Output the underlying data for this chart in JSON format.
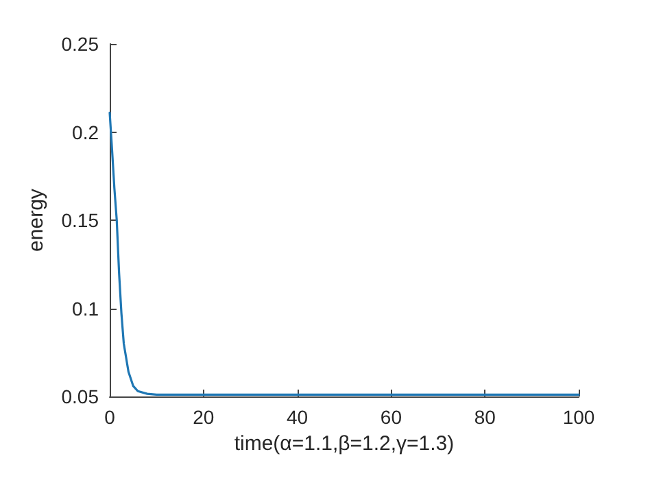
{
  "chart_data": {
    "type": "line",
    "xlabel": "time(α=1.1,β=1.2,γ=1.3)",
    "ylabel": "energy",
    "x": [
      0,
      0.5,
      1,
      1.5,
      2,
      2.5,
      3,
      4,
      5,
      6,
      8,
      10,
      20,
      40,
      60,
      80,
      100
    ],
    "series": [
      {
        "color": "#1f77b4",
        "values": [
          0.211,
          0.19,
          0.168,
          0.15,
          0.12,
          0.097,
          0.08,
          0.064,
          0.056,
          0.053,
          0.0515,
          0.051,
          0.051,
          0.051,
          0.051,
          0.051,
          0.051
        ]
      }
    ],
    "xlim": [
      0,
      100
    ],
    "xticks": [
      0,
      20,
      40,
      60,
      80,
      100
    ],
    "ylim": [
      0.05,
      0.25
    ],
    "yticks": [
      0.05,
      0.1,
      0.15,
      0.2,
      0.25
    ],
    "grid": false,
    "marker": "none",
    "line_style": "solid"
  }
}
